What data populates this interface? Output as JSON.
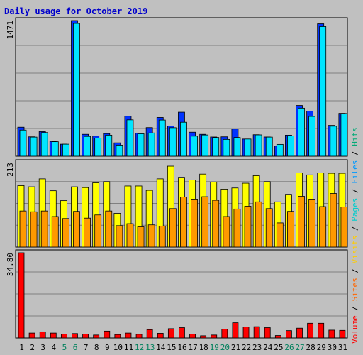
{
  "chart_data": {
    "type": "bar",
    "title": "Daily usage for October 2019",
    "days": [
      "1",
      "2",
      "3",
      "4",
      "5",
      "6",
      "7",
      "8",
      "9",
      "10",
      "11",
      "12",
      "13",
      "14",
      "15",
      "16",
      "17",
      "18",
      "19",
      "20",
      "21",
      "22",
      "23",
      "24",
      "25",
      "26",
      "27",
      "28",
      "29",
      "30",
      "31"
    ],
    "weekend_days": [
      "5",
      "6",
      "12",
      "13",
      "19",
      "20",
      "26",
      "27"
    ],
    "panels": [
      {
        "name": "hits-files",
        "ymax_label": "1471",
        "ymax": 1471,
        "series": [
          {
            "name": "Hits",
            "color": "#0033ff",
            "values": [
              314,
              210,
              266,
              160,
              130,
              1471,
              237,
              218,
              245,
              145,
              434,
              250,
              310,
              420,
              327,
              477,
              260,
              237,
              208,
              210,
              295,
              186,
              233,
              208,
              110,
              228,
              550,
              489,
              1436,
              334,
              465
            ]
          },
          {
            "name": "Files",
            "color": "#00e5ff",
            "values": [
              283,
              207,
              256,
              157,
              130,
              1440,
              214,
              197,
              228,
              120,
              394,
              243,
              252,
              392,
              309,
              368,
              217,
              230,
              203,
              182,
              203,
              186,
              231,
              207,
              128,
              220,
              521,
              431,
              1406,
              325,
              463
            ]
          }
        ]
      },
      {
        "name": "pages-visits",
        "ymax_label": "213",
        "ymax": 213,
        "series": [
          {
            "name": "Pages",
            "color": "#ffff00",
            "values": [
              155,
              152,
              172,
              142,
              117,
              152,
              150,
              162,
              165,
              85,
              154,
              154,
              143,
              172,
              204,
              176,
              169,
              184,
              164,
              146,
              149,
              161,
              180,
              165,
              114,
              133,
              187,
              182,
              187,
              186,
              186
            ]
          },
          {
            "name": "Visits",
            "color": "#ff9900",
            "values": [
              91,
              89,
              91,
              77,
              72,
              90,
              73,
              81,
              91,
              54,
              59,
              51,
              56,
              53,
              97,
              126,
              121,
              127,
              118,
              77,
              96,
              103,
              114,
              97,
              61,
              90,
              128,
              121,
              102,
              135,
              101
            ]
          }
        ]
      },
      {
        "name": "sites-volume",
        "ymax_label": "34.80",
        "ymax": 34.8,
        "series": [
          {
            "name": "Sites",
            "color": "#ff6600",
            "values": []
          },
          {
            "name": "Volume",
            "color": "#ff0000",
            "values": [
              34.8,
              2.0,
              2.5,
              2.0,
              1.6,
              1.8,
              1.6,
              1.2,
              2.8,
              1.4,
              2.0,
              1.5,
              3.4,
              1.9,
              3.8,
              4.2,
              1.6,
              0.9,
              1.2,
              3.6,
              6.2,
              4.5,
              4.6,
              4.2,
              1.0,
              3.0,
              4.0,
              6.0,
              6.0,
              3.2,
              3.1
            ]
          }
        ]
      }
    ],
    "legend": [
      "Volume",
      "Sites",
      "Visits",
      "Pages",
      "Files",
      "Hits"
    ],
    "legend_position": "right-vertical",
    "grid": true
  },
  "colors": {
    "background": "#c0c0c0",
    "title": "#0000cc",
    "grid": "#808080",
    "weekday_label": "#000000",
    "weekend_label": "#00805c",
    "separator": "#000000",
    "shadow": "#006633"
  }
}
